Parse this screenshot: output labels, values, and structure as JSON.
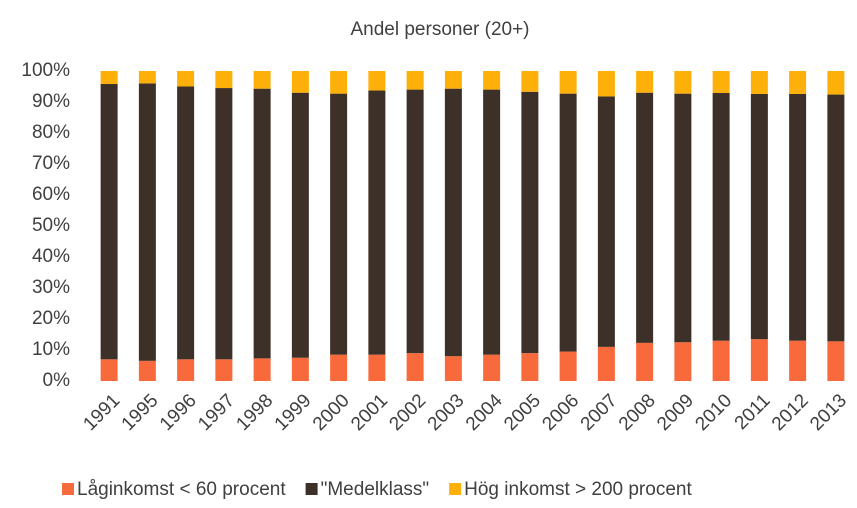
{
  "chart_data": {
    "type": "stacked_bar",
    "title": "Andel personer (20+)",
    "categories": [
      "1991",
      "1995",
      "1996",
      "1997",
      "1998",
      "1999",
      "2000",
      "2001",
      "2002",
      "2003",
      "2004",
      "2005",
      "2006",
      "2007",
      "2008",
      "2009",
      "2010",
      "2011",
      "2012",
      "2013"
    ],
    "series": [
      {
        "name": "Låginkomst < 60 procent",
        "color": "#f86a3c",
        "values": [
          7,
          6.5,
          7,
          7,
          7.3,
          7.5,
          8.5,
          8.5,
          9,
          8,
          8.5,
          9,
          9.5,
          11,
          12.3,
          12.5,
          13,
          13.5,
          13,
          12.8
        ]
      },
      {
        "name": "\"Medelklass\"",
        "color": "#3d3028",
        "values": [
          88.8,
          89.5,
          88,
          87.5,
          87,
          85.5,
          84.2,
          85.2,
          85,
          86.3,
          85.5,
          84.3,
          83.2,
          80.8,
          80.7,
          80.2,
          79.9,
          79.1,
          79.6,
          79.6
        ]
      },
      {
        "name": "Hög inkomst > 200 procent",
        "color": "#fdb00a",
        "values": [
          4.2,
          4,
          5,
          5.5,
          5.7,
          7,
          7.3,
          6.3,
          6,
          5.7,
          6,
          6.7,
          7.3,
          8.2,
          7,
          7.3,
          7.1,
          7.4,
          7.4,
          7.6
        ]
      }
    ],
    "ylim": [
      0,
      100
    ],
    "yticks": [
      {
        "value": 0,
        "label": "0%"
      },
      {
        "value": 10,
        "label": "10%"
      },
      {
        "value": 20,
        "label": "20%"
      },
      {
        "value": 30,
        "label": "30%"
      },
      {
        "value": 40,
        "label": "40%"
      },
      {
        "value": 50,
        "label": "50%"
      },
      {
        "value": 60,
        "label": "60%"
      },
      {
        "value": 70,
        "label": "70%"
      },
      {
        "value": 80,
        "label": "80%"
      },
      {
        "value": 90,
        "label": "90%"
      },
      {
        "value": 100,
        "label": "100%"
      }
    ],
    "grid": false,
    "legend": "bottom"
  }
}
